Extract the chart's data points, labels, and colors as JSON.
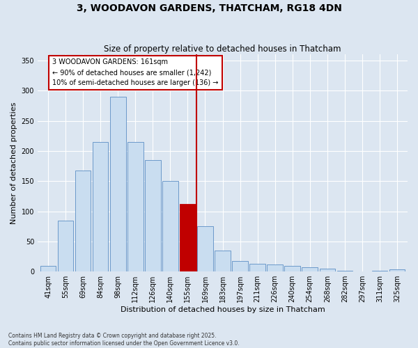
{
  "title": "3, WOODAVON GARDENS, THATCHAM, RG18 4DN",
  "subtitle": "Size of property relative to detached houses in Thatcham",
  "xlabel": "Distribution of detached houses by size in Thatcham",
  "ylabel": "Number of detached properties",
  "categories": [
    "41sqm",
    "55sqm",
    "69sqm",
    "84sqm",
    "98sqm",
    "112sqm",
    "126sqm",
    "140sqm",
    "155sqm",
    "169sqm",
    "183sqm",
    "197sqm",
    "211sqm",
    "226sqm",
    "240sqm",
    "254sqm",
    "268sqm",
    "282sqm",
    "297sqm",
    "311sqm",
    "325sqm"
  ],
  "values": [
    10,
    84,
    167,
    215,
    290,
    215,
    185,
    150,
    112,
    75,
    35,
    17,
    13,
    12,
    9,
    7,
    5,
    1,
    0,
    1,
    4
  ],
  "bar_color": "#c9ddf0",
  "bar_edge_color": "#5b8ec4",
  "highlight_bar_index": 8,
  "highlight_bar_color": "#c00000",
  "highlight_bar_edge_color": "#c00000",
  "vline_x": 8.5,
  "vline_color": "#c00000",
  "annotation_text": "3 WOODAVON GARDENS: 161sqm\n← 90% of detached houses are smaller (1,242)\n10% of semi-detached houses are larger (136) →",
  "annotation_box_color": "#c00000",
  "ylim": [
    0,
    360
  ],
  "yticks": [
    0,
    50,
    100,
    150,
    200,
    250,
    300,
    350
  ],
  "background_color": "#dce6f1",
  "plot_background_color": "#dce6f1",
  "footer": "Contains HM Land Registry data © Crown copyright and database right 2025.\nContains public sector information licensed under the Open Government Licence v3.0.",
  "title_fontsize": 10,
  "subtitle_fontsize": 8.5,
  "axis_label_fontsize": 8,
  "tick_fontsize": 7,
  "annotation_fontsize": 7
}
